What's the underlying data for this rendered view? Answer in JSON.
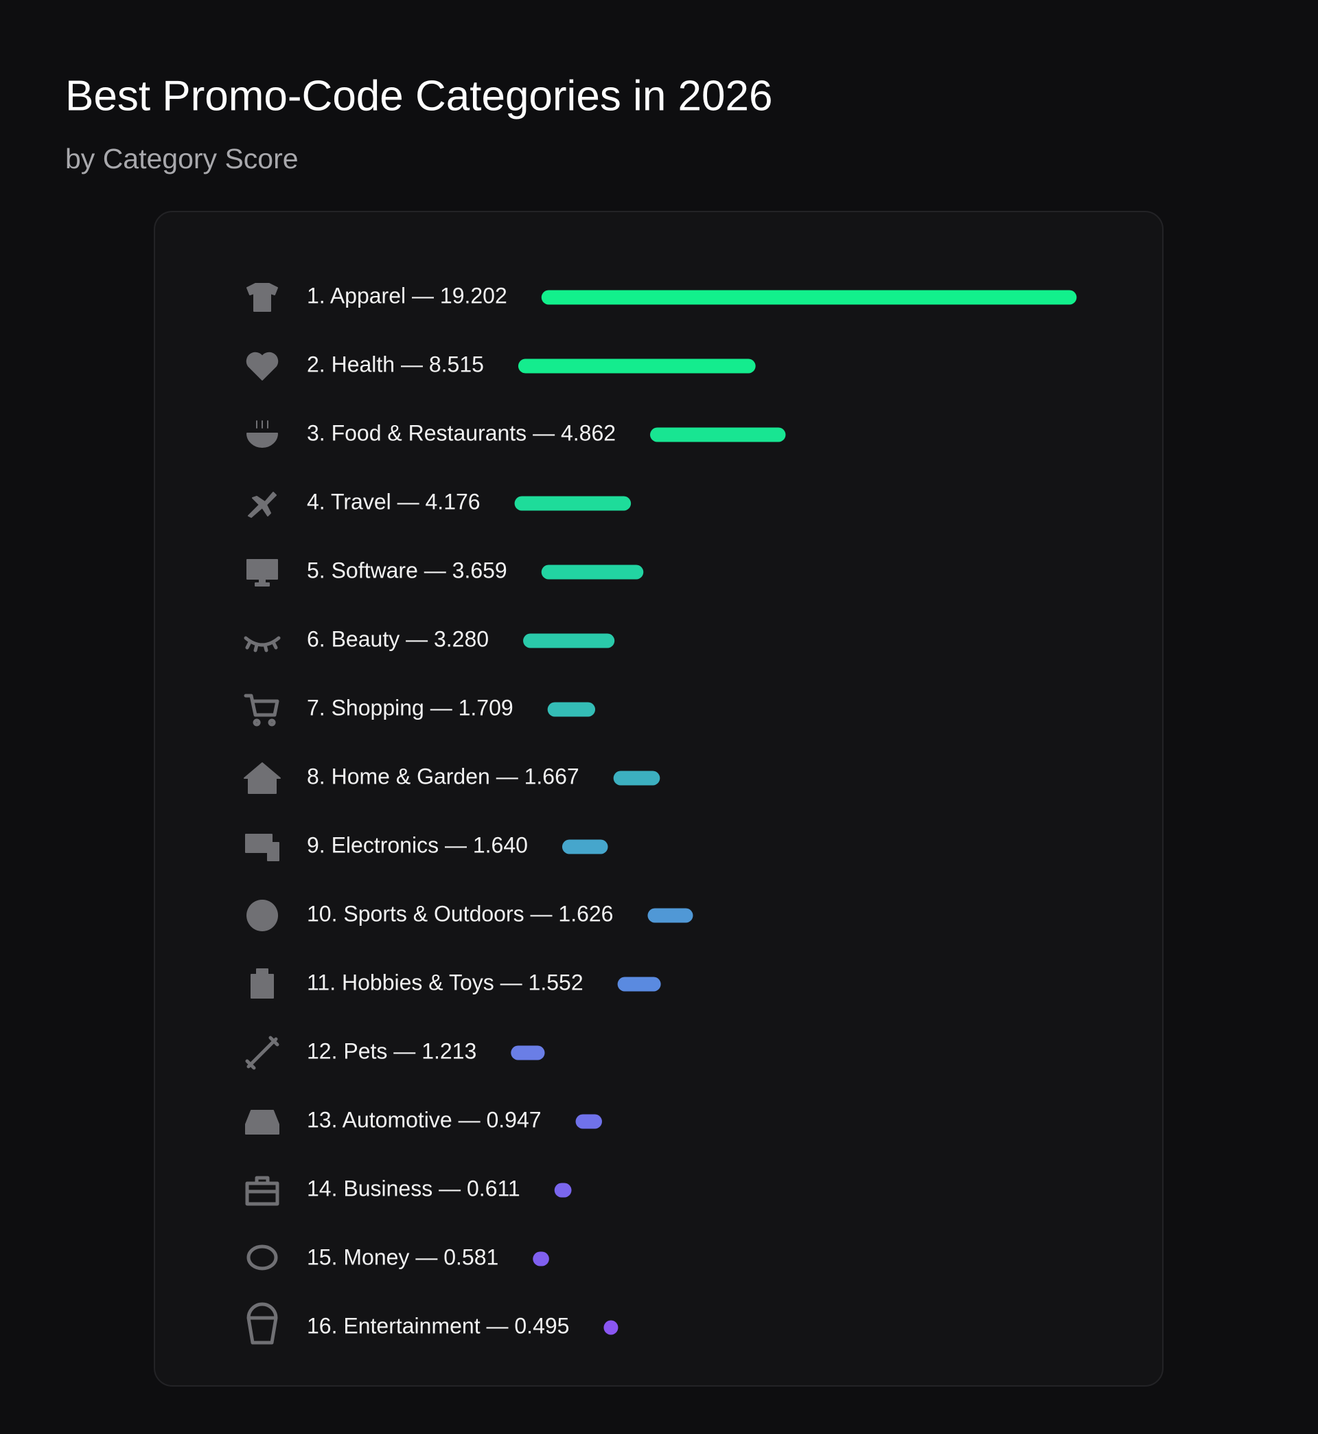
{
  "chart_data": {
    "type": "bar",
    "orientation": "horizontal",
    "title": "Best Promo-Code Categories in 2026",
    "subtitle": "by Category Score",
    "categories": [
      "1. Apparel — 19.202",
      "2. Health — 8.515",
      "3. Food & Restaurants — 4.862",
      "4. Travel — 4.176",
      "5. Software — 3.659",
      "6. Beauty — 3.280",
      "7. Shopping — 1.709",
      "8. Home & Garden — 1.667",
      "9. Electronics — 1.640",
      "10. Sports & Outdoors — 1.626",
      "11. Hobbies & Toys — 1.552",
      "12. Pets — 1.213",
      "13. Automotive — 0.947",
      "14. Business — 0.611",
      "15. Money — 0.581",
      "16. Entertainment — 0.495"
    ],
    "values": [
      19.202,
      8.515,
      4.862,
      4.176,
      3.659,
      3.28,
      1.709,
      1.667,
      1.64,
      1.626,
      1.552,
      1.213,
      0.947,
      0.611,
      0.581,
      0.495
    ],
    "colors": [
      "#12f08c",
      "#14ec8e",
      "#18e592",
      "#1edc9a",
      "#22d4a2",
      "#2acaaa",
      "#34bdb6",
      "#3cb0c0",
      "#46a6cc",
      "#5098d6",
      "#5a8ae0",
      "#6a7ee6",
      "#7072ea",
      "#7a66ee",
      "#8060f0",
      "#8a56f2"
    ]
  }
}
